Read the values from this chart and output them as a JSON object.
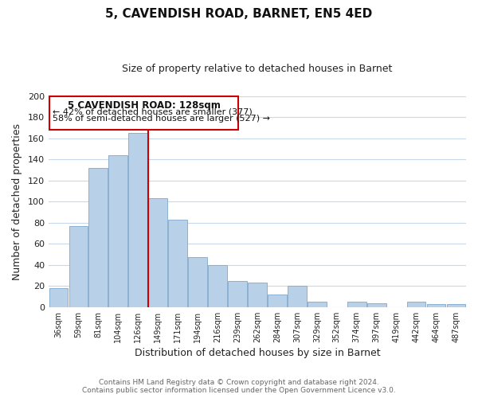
{
  "title": "5, CAVENDISH ROAD, BARNET, EN5 4ED",
  "subtitle": "Size of property relative to detached houses in Barnet",
  "xlabel": "Distribution of detached houses by size in Barnet",
  "ylabel": "Number of detached properties",
  "categories": [
    "36sqm",
    "59sqm",
    "81sqm",
    "104sqm",
    "126sqm",
    "149sqm",
    "171sqm",
    "194sqm",
    "216sqm",
    "239sqm",
    "262sqm",
    "284sqm",
    "307sqm",
    "329sqm",
    "352sqm",
    "374sqm",
    "397sqm",
    "419sqm",
    "442sqm",
    "464sqm",
    "487sqm"
  ],
  "values": [
    18,
    77,
    132,
    144,
    165,
    103,
    83,
    47,
    40,
    25,
    23,
    12,
    20,
    5,
    0,
    5,
    4,
    0,
    5,
    3,
    3
  ],
  "bar_color": "#b8d0e8",
  "bar_edge_color": "#8ab0d0",
  "vline_color": "#cc0000",
  "vline_x": 4,
  "ylim": [
    0,
    200
  ],
  "yticks": [
    0,
    20,
    40,
    60,
    80,
    100,
    120,
    140,
    160,
    180,
    200
  ],
  "annotation_box_text1": "5 CAVENDISH ROAD: 128sqm",
  "annotation_box_text2": "← 42% of detached houses are smaller (377)",
  "annotation_box_text3": "58% of semi-detached houses are larger (527) →",
  "footer_line1": "Contains HM Land Registry data © Crown copyright and database right 2024.",
  "footer_line2": "Contains public sector information licensed under the Open Government Licence v3.0.",
  "background_color": "#ffffff",
  "grid_color": "#c8d8e8"
}
